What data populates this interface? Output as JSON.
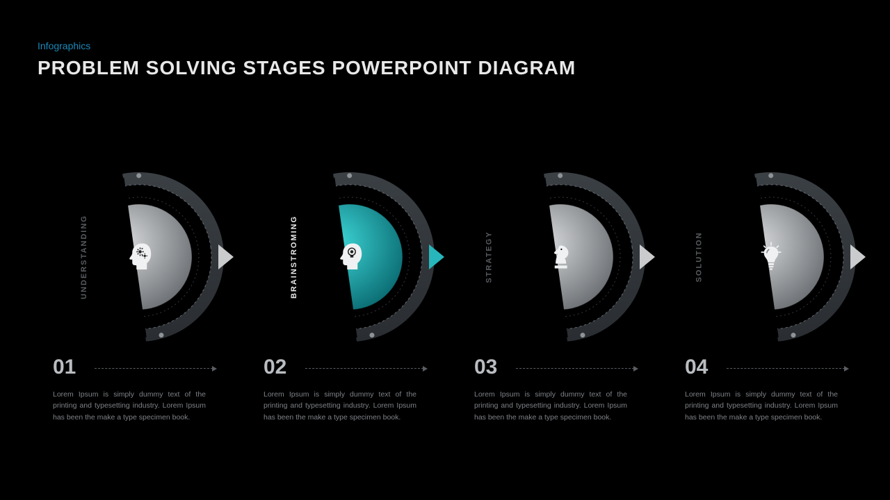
{
  "header": {
    "category": "Infographics",
    "category_color": "#1c88b8",
    "title": "PROBLEM SOLVING STAGES POWERPOINT DIAGRAM",
    "title_color": "#e8e8e8"
  },
  "layout": {
    "background": "#000000",
    "stage_count": 4
  },
  "palette": {
    "outer_ring": "#3b4045",
    "outer_ring_dark": "#2a2e32",
    "dash_ring_light": "#9aa0a6",
    "dash_ring_dark": "#5a5e63",
    "inner_gray_top": "#d5d7d9",
    "inner_gray_bot": "#6b6f73",
    "inner_teal_top": "#3dd6d6",
    "inner_teal_bot": "#0a6b72",
    "number_color": "#b9bdc1",
    "desc_color": "#7d8186",
    "label_gray": "#575b5f",
    "label_white": "#e8e8e8",
    "pointer_gray": "#c9cbcd",
    "pointer_teal": "#27b6bb",
    "dot": "#8e9398"
  },
  "stages": [
    {
      "num": "01",
      "label": "UNDERSTANDING",
      "highlighted": false,
      "icon": "head-gears",
      "desc": "Lorem Ipsum is simply dummy text of the printing and typesetting industry. Lorem Ipsum has been the make a type specimen book."
    },
    {
      "num": "02",
      "label": "BRAINSTROMING",
      "highlighted": true,
      "icon": "head-bulb",
      "desc": "Lorem Ipsum is simply dummy text of the printing and typesetting industry. Lorem Ipsum has been the make a type specimen book."
    },
    {
      "num": "03",
      "label": "STRATEGY",
      "highlighted": false,
      "icon": "chess-knight",
      "desc": "Lorem Ipsum is simply dummy text of the printing and typesetting industry. Lorem Ipsum has been the make a type specimen book."
    },
    {
      "num": "04",
      "label": "SOLUTION",
      "highlighted": false,
      "icon": "lightbulb",
      "desc": "Lorem Ipsum is simply dummy text of the printing and typesetting industry. Lorem Ipsum has been the make a type specimen book."
    }
  ]
}
